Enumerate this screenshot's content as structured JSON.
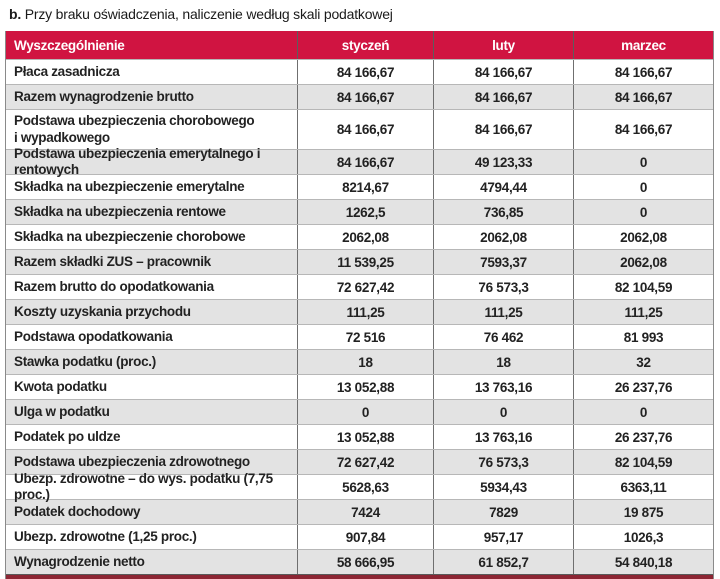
{
  "title": {
    "prefix": "b.",
    "text": "Przy braku oświadczenia, naliczenie według skali podatkowej"
  },
  "colors": {
    "header_bg": "#d01441",
    "header_text": "#ffffff",
    "alt_row_bg": "#e3e3e3",
    "bottom_rule": "#8c2634"
  },
  "table": {
    "columns": [
      "Wyszczególnienie",
      "styczeń",
      "luty",
      "marzec"
    ],
    "rows": [
      {
        "label": "Płaca zasadnicza",
        "values": [
          "84 166,67",
          "84 166,67",
          "84 166,67"
        ]
      },
      {
        "label": "Razem wynagrodzenie brutto",
        "values": [
          "84 166,67",
          "84 166,67",
          "84 166,67"
        ]
      },
      {
        "label": "Podstawa ubezpieczenia chorobowego\ni wypadkowego",
        "tall": true,
        "values": [
          "84 166,67",
          "84 166,67",
          "84 166,67"
        ]
      },
      {
        "label": "Podstawa ubezpieczenia emerytalnego i rentowych",
        "values": [
          "84 166,67",
          "49 123,33",
          "0"
        ]
      },
      {
        "label": "Składka na ubezpieczenie emerytalne",
        "values": [
          "8214,67",
          "4794,44",
          "0"
        ]
      },
      {
        "label": "Składka na ubezpieczenia rentowe",
        "values": [
          "1262,5",
          "736,85",
          "0"
        ]
      },
      {
        "label": "Składka na ubezpieczenie chorobowe",
        "values": [
          "2062,08",
          "2062,08",
          "2062,08"
        ]
      },
      {
        "label": "Razem składki ZUS – pracownik",
        "values": [
          "11 539,25",
          "7593,37",
          "2062,08"
        ]
      },
      {
        "label": "Razem brutto do opodatkowania",
        "values": [
          "72 627,42",
          "76 573,3",
          "82 104,59"
        ]
      },
      {
        "label": "Koszty uzyskania przychodu",
        "values": [
          "111,25",
          "111,25",
          "111,25"
        ]
      },
      {
        "label": "Podstawa opodatkowania",
        "values": [
          "72 516",
          "76 462",
          "81 993"
        ]
      },
      {
        "label": "Stawka podatku (proc.)",
        "values": [
          "18",
          "18",
          "32"
        ]
      },
      {
        "label": "Kwota podatku",
        "values": [
          "13 052,88",
          "13 763,16",
          "26 237,76"
        ]
      },
      {
        "label": "Ulga w podatku",
        "values": [
          "0",
          "0",
          "0"
        ]
      },
      {
        "label": "Podatek po uldze",
        "values": [
          "13 052,88",
          "13 763,16",
          "26 237,76"
        ]
      },
      {
        "label": "Podstawa ubezpieczenia zdrowotnego",
        "values": [
          "72 627,42",
          "76 573,3",
          "82 104,59"
        ]
      },
      {
        "label": "Ubezp. zdrowotne – do wys. podatku (7,75 proc.)",
        "values": [
          "5628,63",
          "5934,43",
          "6363,11"
        ]
      },
      {
        "label": "Podatek dochodowy",
        "values": [
          "7424",
          "7829",
          "19 875"
        ]
      },
      {
        "label": "Ubezp. zdrowotne (1,25 proc.)",
        "values": [
          "907,84",
          "957,17",
          "1026,3"
        ]
      },
      {
        "label": "Wynagrodzenie netto",
        "values": [
          "58 666,95",
          "61 852,7",
          "54 840,18"
        ]
      }
    ]
  }
}
